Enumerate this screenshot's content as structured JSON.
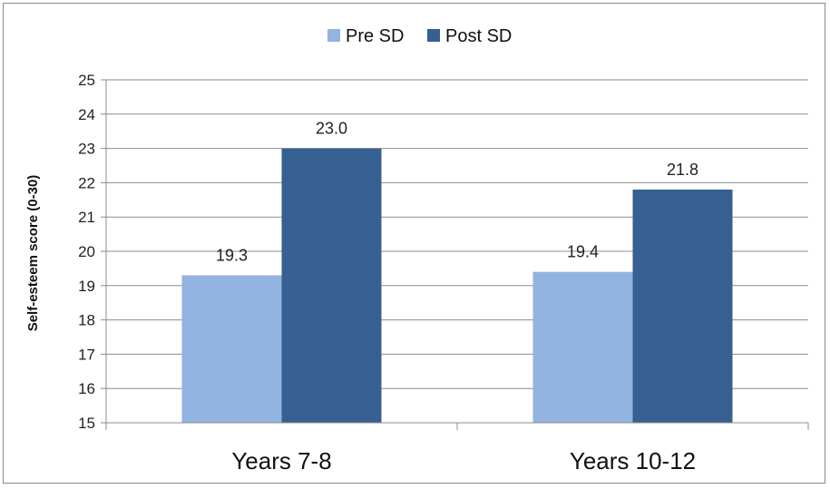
{
  "chart_data": {
    "type": "bar",
    "title": "",
    "xlabel": "",
    "ylabel": "Self-esteem score (0-30)",
    "categories": [
      "Years 7-8",
      "Years 10-12"
    ],
    "series": [
      {
        "name": "Pre SD",
        "values": [
          19.3,
          19.4
        ],
        "labels": [
          "19.3",
          "19.4"
        ],
        "color": "#93b3e0"
      },
      {
        "name": "Post SD",
        "values": [
          23.0,
          21.8
        ],
        "labels": [
          "23.0",
          "21.8"
        ],
        "color": "#366091"
      }
    ],
    "ylim": [
      15,
      25
    ],
    "yticks": [
      15,
      16,
      17,
      18,
      19,
      20,
      21,
      22,
      23,
      24,
      25
    ],
    "grid": true,
    "legend_position": "top-center"
  },
  "colors": {
    "grid": "#8c8c8c",
    "axis": "#8c8c8c",
    "text": "#222222"
  }
}
